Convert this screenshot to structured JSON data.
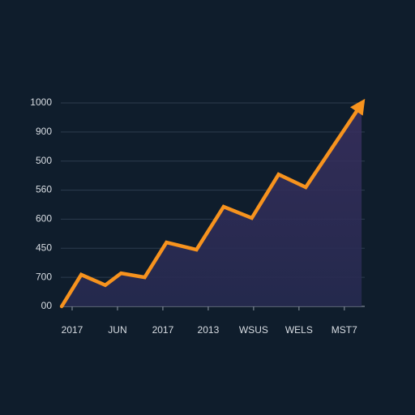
{
  "chart_data": {
    "type": "line",
    "x": [
      -0.23,
      0.2,
      0.73,
      1.08,
      1.6,
      2.08,
      2.74,
      3.34,
      3.96,
      4.55,
      5.15,
      6.38
    ],
    "series": [
      {
        "color": "#f7931e",
        "values": [
          0,
          1.09,
          0.73,
          1.14,
          1.0,
          2.2,
          1.95,
          3.43,
          3.04,
          4.54,
          4.1,
          6.97
        ]
      }
    ],
    "xlim": [
      -0.25,
      6.45
    ],
    "xticks": [
      {
        "value": 0,
        "label": "2017"
      },
      {
        "value": 1,
        "label": "JUN"
      },
      {
        "value": 2,
        "label": "2017"
      },
      {
        "value": 3,
        "label": "2013"
      },
      {
        "value": 4,
        "label": "WSUS"
      },
      {
        "value": 5,
        "label": "WELS"
      },
      {
        "value": 6,
        "label": "MST7"
      }
    ],
    "ylim": [
      0,
      7
    ],
    "yticks": [
      {
        "value": 0,
        "label": "00"
      },
      {
        "value": 1,
        "label": "700"
      },
      {
        "value": 2,
        "label": "450"
      },
      {
        "value": 3,
        "label": "600"
      },
      {
        "value": 4,
        "label": "560"
      },
      {
        "value": 5,
        "label": "500"
      },
      {
        "value": 6,
        "label": "900"
      },
      {
        "value": 7,
        "label": "1000"
      }
    ],
    "grid": true,
    "area": true
  }
}
